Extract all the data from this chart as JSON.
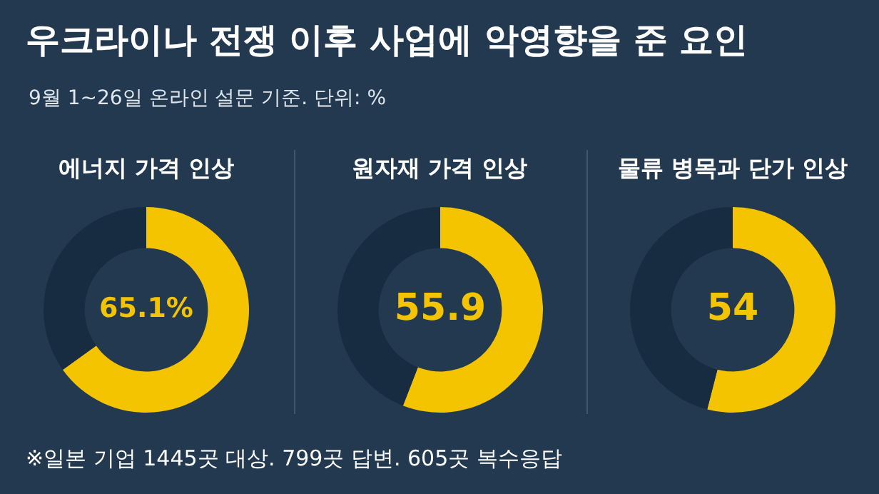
{
  "chart_data": [
    {
      "type": "other",
      "title": "우크라이나 전쟁 이후 사업에 악영향을 준 요인",
      "subtitle": "9월 1~26일 온라인 설문 기준. 단위: %",
      "annotations": [
        "※일본 기업 1445곳 대상. 799곳 답변. 605곳 복수응답"
      ]
    },
    {
      "type": "donut",
      "title": "에너지 가격 인상",
      "categories": [
        null,
        null
      ],
      "values": [
        65.1,
        34.9
      ],
      "colors": [
        "#f5c400",
        "#172c40"
      ],
      "value_labels": [
        "65.1%",
        null
      ]
    },
    {
      "type": "donut",
      "title": "원자재 가격 인상",
      "categories": [
        null,
        null
      ],
      "values": [
        55.9,
        44.1
      ],
      "colors": [
        "#f5c400",
        "#172c40"
      ],
      "value_labels": [
        "55.9",
        null
      ]
    },
    {
      "type": "donut",
      "title": "물류 병목과 단가 인상",
      "categories": [
        null,
        null
      ],
      "values": [
        54,
        46
      ],
      "colors": [
        "#f5c400",
        "#172c40"
      ],
      "value_labels": [
        "54",
        null
      ]
    }
  ]
}
